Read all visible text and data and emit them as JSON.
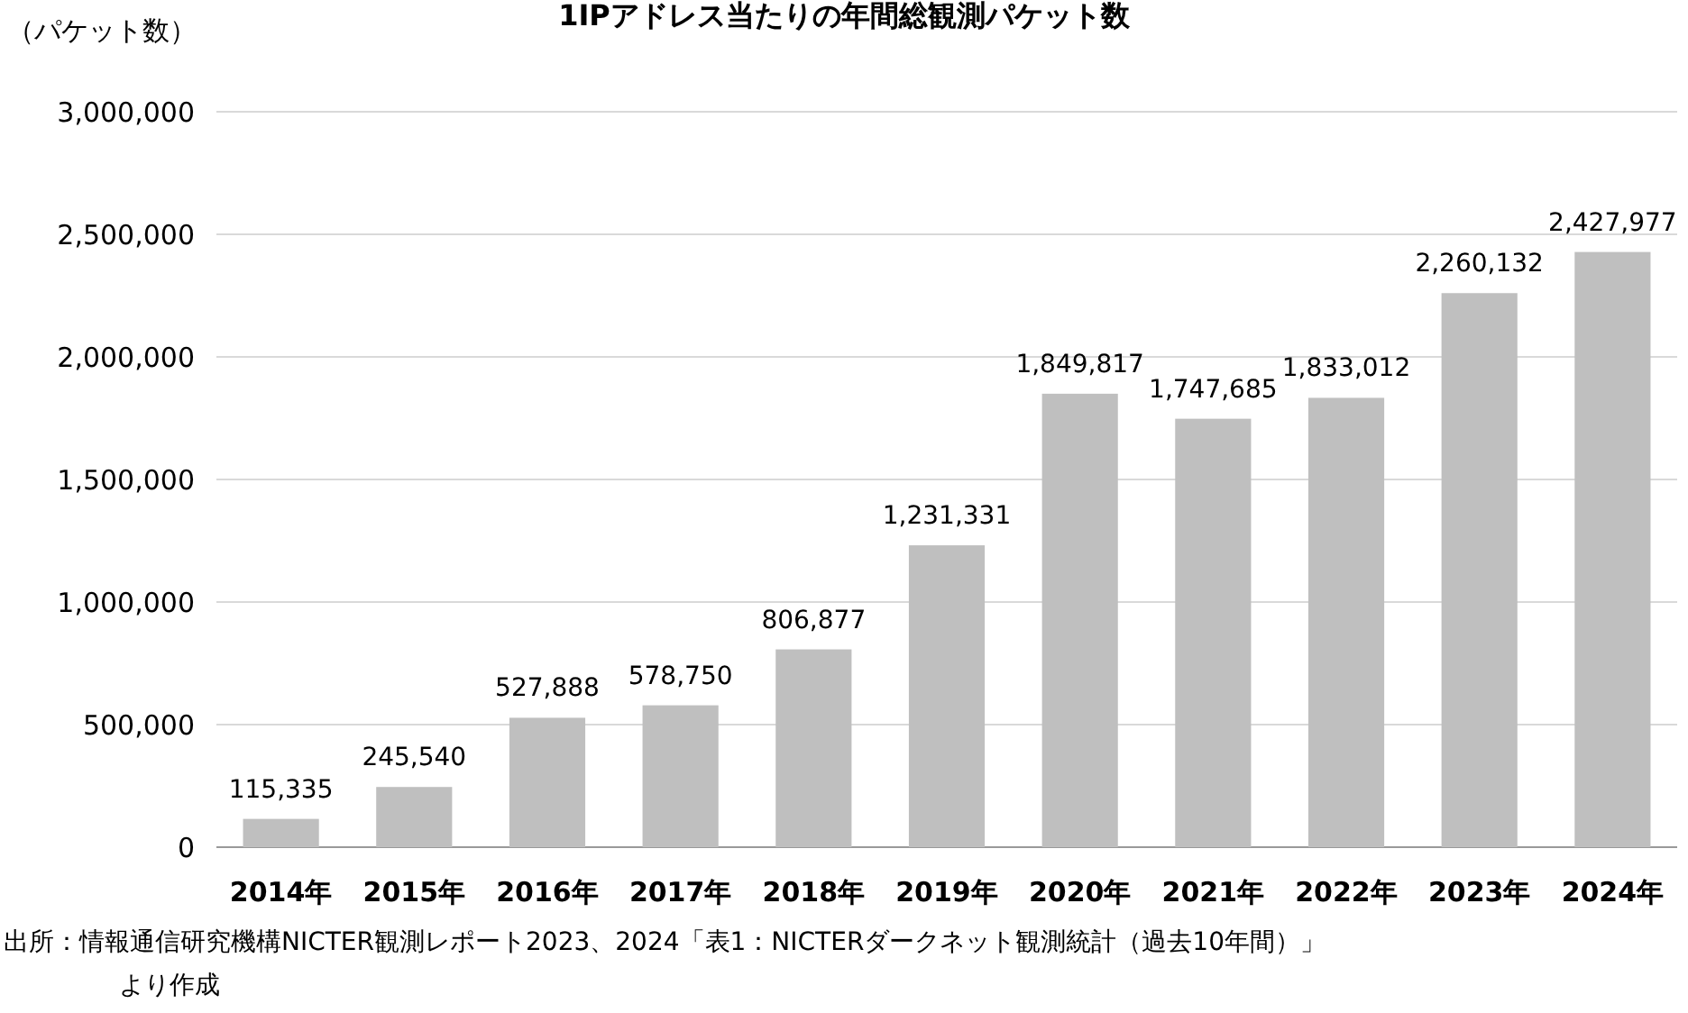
{
  "chart_data": {
    "type": "bar",
    "title": "1IPアドレス当たりの年間総観測パケット数",
    "ylabel": "（パケット数）",
    "categories": [
      "2014年",
      "2015年",
      "2016年",
      "2017年",
      "2018年",
      "2019年",
      "2020年",
      "2021年",
      "2022年",
      "2023年",
      "2024年"
    ],
    "values": [
      115335,
      245540,
      527888,
      578750,
      806877,
      1231331,
      1849817,
      1747685,
      1833012,
      2260132,
      2427977
    ],
    "color": "#bfbfbf",
    "grid": "y",
    "value_labels": [
      "115,335",
      "245,540",
      "527,888",
      "578,750",
      "806,877",
      "1,231,331",
      "1,849,817",
      "1,747,685",
      "1,833,012",
      "2,260,132",
      "2,427,977"
    ],
    "ylim": [
      0,
      3000000
    ],
    "yticks": [
      {
        "value": 0,
        "label": "0"
      },
      {
        "value": 500000,
        "label": "500,000"
      },
      {
        "value": 1000000,
        "label": "1,000,000"
      },
      {
        "value": 1500000,
        "label": "1,500,000"
      },
      {
        "value": 2000000,
        "label": "2,000,000"
      },
      {
        "value": 2500000,
        "label": "2,500,000"
      },
      {
        "value": 3000000,
        "label": "3,000,000"
      }
    ],
    "annotations": [
      "出所：情報通信研究機構NICTER観測レポート2023、2024「表1：NICTERダークネット観測統計（過去10年間）」",
      "より作成"
    ]
  }
}
